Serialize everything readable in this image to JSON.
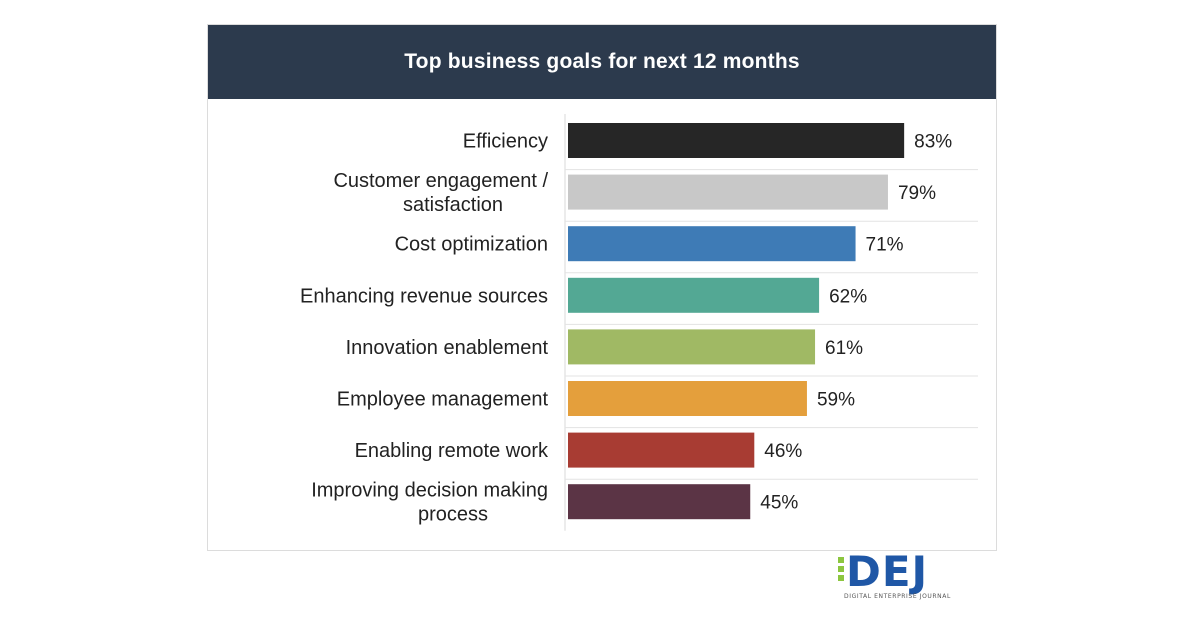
{
  "chart_data": {
    "type": "bar",
    "orientation": "horizontal",
    "title": "Top business goals for next 12 months",
    "categories": [
      [
        "Efficiency"
      ],
      [
        "Customer engagement /",
        "satisfaction"
      ],
      [
        "Cost optimization"
      ],
      [
        "Enhancing revenue sources"
      ],
      [
        "Innovation enablement"
      ],
      [
        "Employee management"
      ],
      [
        "Enabling remote work"
      ],
      [
        "Improving decision making",
        "process"
      ]
    ],
    "values": [
      83,
      79,
      71,
      62,
      61,
      59,
      46,
      45
    ],
    "value_suffix": "%",
    "colors": [
      "#262626",
      "#c8c8c8",
      "#3e7bb6",
      "#53a894",
      "#a0b964",
      "#e49f3c",
      "#a83c33",
      "#5b3445"
    ],
    "xlim": [
      0,
      100
    ],
    "grid": "horizontal separators",
    "legend": "none"
  },
  "logo": {
    "text": "DEJ",
    "subtitle": "DIGITAL ENTERPRISE JOURNAL"
  }
}
